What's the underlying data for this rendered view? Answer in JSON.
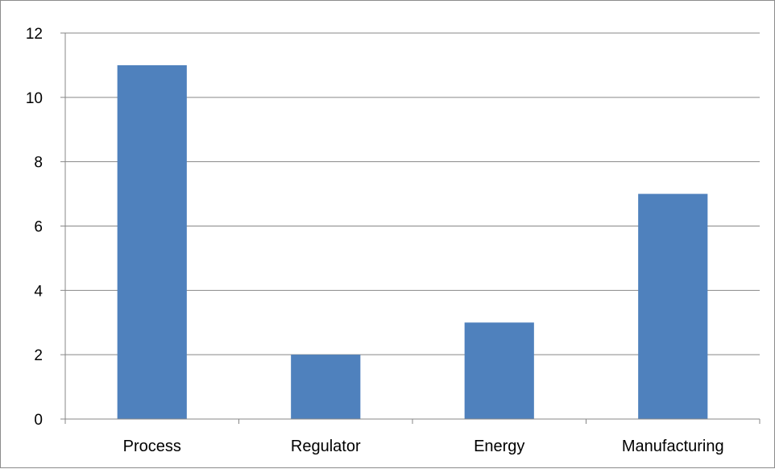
{
  "chart_data": {
    "type": "bar",
    "categories": [
      "Process",
      "Regulator",
      "Energy",
      "Manufacturing"
    ],
    "values": [
      11,
      2,
      3,
      7
    ],
    "title": "",
    "xlabel": "",
    "ylabel": "",
    "ylim": [
      0,
      12
    ],
    "yticks": [
      0,
      2,
      4,
      6,
      8,
      10,
      12
    ],
    "grid": true,
    "legend": "none",
    "bar_color": "#4f81bd",
    "grid_color": "#878787",
    "axis_color": "#878787"
  }
}
